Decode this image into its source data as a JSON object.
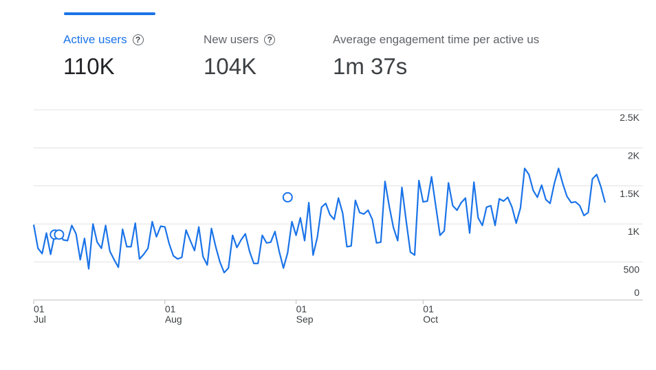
{
  "metrics": {
    "active_users": {
      "label": "Active users",
      "value": "110K"
    },
    "new_users": {
      "label": "New users",
      "value": "104K"
    },
    "engagement": {
      "label": "Average engagement time per active us",
      "value": "1m 37s"
    }
  },
  "help_glyph": "?",
  "colors": {
    "accent": "#1a73e8",
    "line": "#1a73e8",
    "grid": "#e0e0e0"
  },
  "chart_data": {
    "type": "line",
    "title": "",
    "xlabel": "",
    "ylabel": "",
    "ylim": [
      0,
      2500
    ],
    "yticks": [
      {
        "value": 2500,
        "label": "2.5K"
      },
      {
        "value": 2000,
        "label": "2K"
      },
      {
        "value": 1500,
        "label": "1.5K"
      },
      {
        "value": 1000,
        "label": "1K"
      },
      {
        "value": 500,
        "label": "500"
      },
      {
        "value": 0,
        "label": "0"
      }
    ],
    "xticks": [
      {
        "index": 0,
        "day": "01",
        "month": "Jul"
      },
      {
        "index": 31,
        "day": "01",
        "month": "Aug"
      },
      {
        "index": 62,
        "day": "01",
        "month": "Sep"
      },
      {
        "index": 92,
        "day": "01",
        "month": "Oct"
      }
    ],
    "annotations": [
      {
        "index": 5,
        "value": 860
      },
      {
        "index": 6,
        "value": 860
      },
      {
        "index": 60,
        "value": 1350
      }
    ],
    "series": [
      {
        "name": "Active users",
        "values": [
          990,
          680,
          610,
          880,
          600,
          870,
          870,
          790,
          780,
          980,
          870,
          530,
          810,
          410,
          1000,
          760,
          680,
          980,
          640,
          530,
          430,
          930,
          700,
          700,
          1010,
          540,
          600,
          680,
          1030,
          830,
          970,
          960,
          740,
          580,
          540,
          560,
          920,
          780,
          650,
          960,
          570,
          460,
          940,
          700,
          500,
          360,
          420,
          850,
          690,
          790,
          870,
          640,
          480,
          480,
          850,
          750,
          760,
          900,
          640,
          420,
          620,
          1030,
          850,
          1080,
          780,
          1280,
          590,
          820,
          1220,
          1270,
          1120,
          1060,
          1340,
          1140,
          700,
          710,
          1310,
          1150,
          1130,
          1180,
          1060,
          750,
          760,
          1560,
          1230,
          950,
          780,
          1480,
          1040,
          630,
          590,
          1570,
          1290,
          1300,
          1620,
          1230,
          850,
          910,
          1540,
          1240,
          1180,
          1280,
          1340,
          880,
          1550,
          1080,
          980,
          1220,
          1240,
          980,
          1330,
          1300,
          1350,
          1220,
          1010,
          1210,
          1730,
          1650,
          1440,
          1350,
          1510,
          1320,
          1270,
          1530,
          1730,
          1530,
          1360,
          1280,
          1290,
          1240,
          1110,
          1150,
          1590,
          1650,
          1490,
          1280
        ]
      }
    ]
  }
}
